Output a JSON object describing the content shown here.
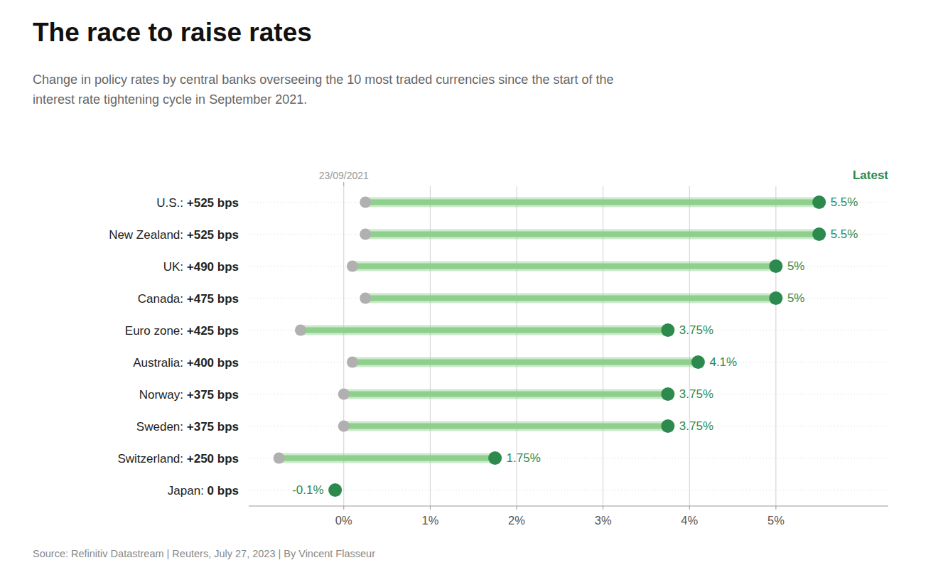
{
  "chart_data": {
    "type": "dumbbell",
    "orientation": "horizontal",
    "title": "The race to raise rates",
    "subtitle": "Change in policy rates by central banks overseeing the 10 most traded currencies since the start of the\ninterest rate tightening cycle in September 2021.",
    "source": "Source: Refinitiv Datastream | Reuters, July 27, 2023 | By Vincent Flasseur",
    "categories": [
      "U.S.",
      "New Zealand",
      "UK",
      "Canada",
      "Euro zone",
      "Australia",
      "Norway",
      "Sweden",
      "Switzerland",
      "Japan"
    ],
    "change_labels": [
      "+525 bps",
      "+525 bps",
      "+490 bps",
      "+475 bps",
      "+425 bps",
      "+400 bps",
      "+375 bps",
      "+375 bps",
      "+250 bps",
      "0 bps"
    ],
    "color": "#8ecf8c",
    "series": [
      {
        "name": "23/09/2021",
        "color": "#b0b0b0",
        "values": [
          0.25,
          0.25,
          0.1,
          0.25,
          -0.5,
          0.1,
          0.0,
          0.0,
          -0.75,
          -0.1
        ]
      },
      {
        "name": "Latest",
        "color": "#2d8a4e",
        "values": [
          5.5,
          5.5,
          5.0,
          5.0,
          3.75,
          4.1,
          3.75,
          3.75,
          1.75,
          -0.1
        ],
        "value_labels": [
          "5.5%",
          "5.5%",
          "5%",
          "5%",
          "3.75%",
          "4.1%",
          "3.75%",
          "3.75%",
          "1.75%",
          "-0.1%"
        ],
        "data_labels": true
      }
    ],
    "xlim": [
      -1.1,
      6.3
    ],
    "xticks": [
      {
        "value": 0,
        "label": "0%"
      },
      {
        "value": 1,
        "label": "1%"
      },
      {
        "value": 2,
        "label": "2%"
      },
      {
        "value": 3,
        "label": "3%"
      },
      {
        "value": 4,
        "label": "4%"
      },
      {
        "value": 5,
        "label": "5%"
      }
    ],
    "grid": true
  }
}
